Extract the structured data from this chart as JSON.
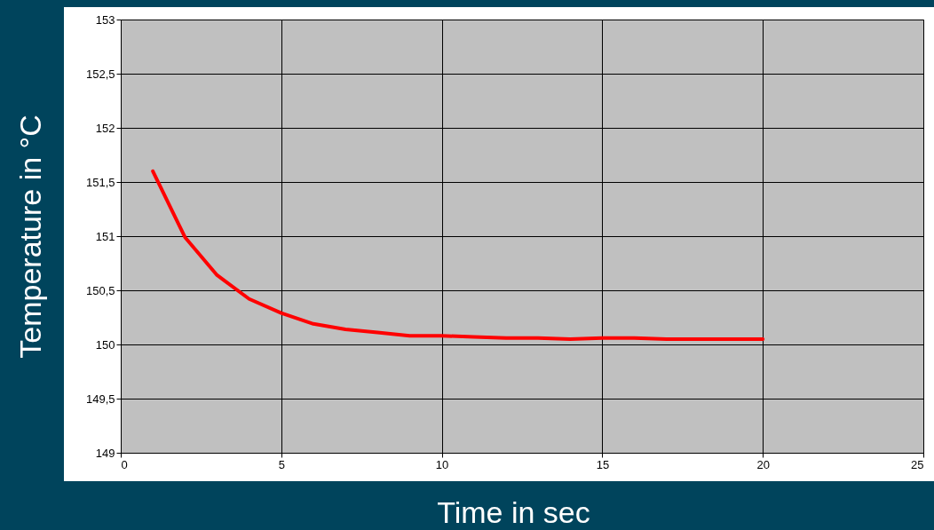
{
  "chart_data": {
    "type": "line",
    "xlabel": "Time in sec",
    "ylabel": "Temperature in °C",
    "x": [
      1,
      2,
      3,
      4,
      5,
      6,
      7,
      8,
      9,
      10,
      11,
      12,
      13,
      14,
      15,
      16,
      17,
      18,
      19,
      20
    ],
    "series": [
      {
        "color": "#ff0000",
        "values": [
          151.6,
          150.99,
          150.64,
          150.42,
          150.29,
          150.19,
          150.14,
          150.11,
          150.08,
          150.08,
          150.07,
          150.06,
          150.06,
          150.05,
          150.06,
          150.06,
          150.05,
          150.05,
          150.05,
          150.05
        ]
      }
    ],
    "xlim": [
      0,
      25
    ],
    "xticks": [
      0,
      5,
      10,
      15,
      20,
      25
    ],
    "ylim": [
      149,
      153
    ],
    "yticks": [
      149,
      {
        "value": 149.5,
        "label": "149,5"
      },
      150,
      {
        "value": 150.5,
        "label": "150,5"
      },
      151,
      {
        "value": 151.5,
        "label": "151,5"
      },
      152,
      {
        "value": 152.5,
        "label": "152,5"
      },
      153
    ],
    "grid": true,
    "marker": "none",
    "line_style": "solid",
    "legend": false
  }
}
